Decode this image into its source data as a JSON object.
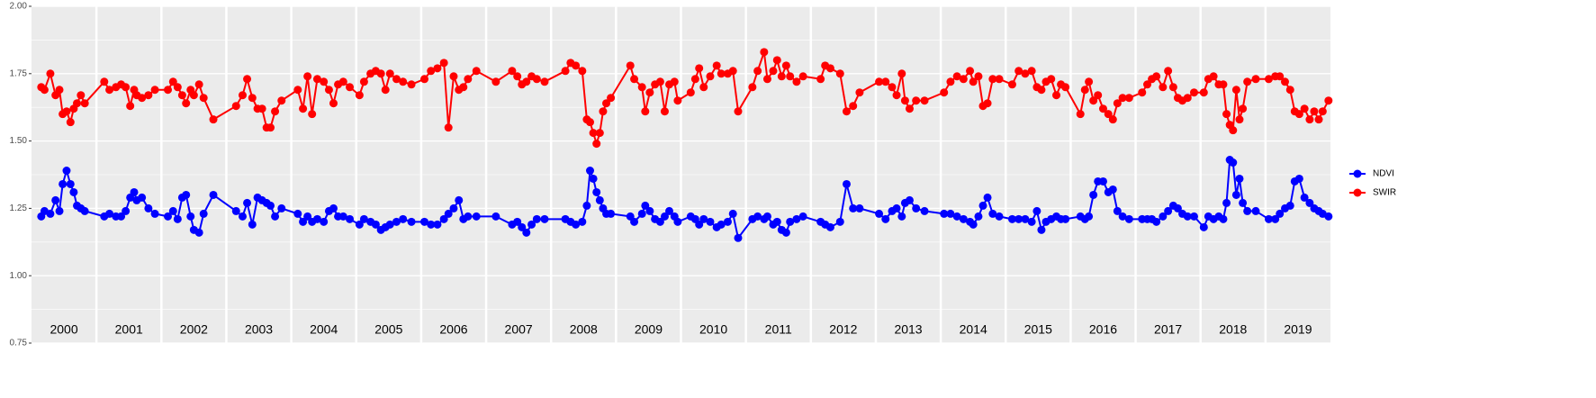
{
  "chart_data": {
    "type": "line",
    "years": [
      "2000",
      "2001",
      "2002",
      "2003",
      "2004",
      "2005",
      "2006",
      "2007",
      "2008",
      "2009",
      "2010",
      "2011",
      "2012",
      "2013",
      "2014",
      "2015",
      "2016",
      "2017",
      "2018",
      "2019"
    ],
    "x": [
      2000.15,
      2000.2,
      2000.29,
      2000.37,
      2000.43,
      2000.48,
      2000.54,
      2000.6,
      2000.65,
      2000.7,
      2000.76,
      2000.82,
      2001.12,
      2001.2,
      2001.3,
      2001.38,
      2001.45,
      2001.52,
      2001.58,
      2001.62,
      2001.7,
      2001.8,
      2001.9,
      2002.1,
      2002.18,
      2002.25,
      2002.32,
      2002.38,
      2002.45,
      2002.5,
      2002.58,
      2002.65,
      2002.8,
      2003.15,
      2003.25,
      2003.32,
      2003.4,
      2003.48,
      2003.55,
      2003.62,
      2003.68,
      2003.75,
      2003.85,
      2004.1,
      2004.18,
      2004.25,
      2004.32,
      2004.4,
      2004.5,
      2004.58,
      2004.65,
      2004.72,
      2004.8,
      2004.9,
      2005.05,
      2005.12,
      2005.22,
      2005.3,
      2005.38,
      2005.45,
      2005.52,
      2005.62,
      2005.72,
      2005.85,
      2006.05,
      2006.15,
      2006.25,
      2006.35,
      2006.42,
      2006.5,
      2006.58,
      2006.65,
      2006.72,
      2006.85,
      2007.15,
      2007.4,
      2007.48,
      2007.55,
      2007.62,
      2007.7,
      2007.78,
      2007.9,
      2008.22,
      2008.3,
      2008.38,
      2008.48,
      2008.55,
      2008.6,
      2008.65,
      2008.7,
      2008.75,
      2008.8,
      2008.85,
      2008.92,
      2009.22,
      2009.28,
      2009.4,
      2009.45,
      2009.52,
      2009.6,
      2009.68,
      2009.75,
      2009.82,
      2009.9,
      2009.95,
      2010.15,
      2010.22,
      2010.28,
      2010.35,
      2010.45,
      2010.55,
      2010.62,
      2010.72,
      2010.8,
      2010.88,
      2011.1,
      2011.18,
      2011.28,
      2011.33,
      2011.42,
      2011.48,
      2011.55,
      2011.62,
      2011.68,
      2011.78,
      2011.88,
      2012.15,
      2012.22,
      2012.3,
      2012.45,
      2012.55,
      2012.65,
      2012.75,
      2013.05,
      2013.15,
      2013.25,
      2013.32,
      2013.4,
      2013.45,
      2013.52,
      2013.62,
      2013.75,
      2014.05,
      2014.15,
      2014.25,
      2014.35,
      2014.45,
      2014.5,
      2014.58,
      2014.65,
      2014.72,
      2014.8,
      2014.9,
      2015.1,
      2015.2,
      2015.3,
      2015.4,
      2015.48,
      2015.55,
      2015.62,
      2015.7,
      2015.78,
      2015.85,
      2015.92,
      2016.15,
      2016.22,
      2016.28,
      2016.35,
      2016.42,
      2016.5,
      2016.58,
      2016.65,
      2016.72,
      2016.8,
      2016.9,
      2017.1,
      2017.18,
      2017.25,
      2017.32,
      2017.42,
      2017.5,
      2017.58,
      2017.65,
      2017.72,
      2017.8,
      2017.9,
      2018.05,
      2018.12,
      2018.2,
      2018.28,
      2018.35,
      2018.4,
      2018.45,
      2018.5,
      2018.55,
      2018.6,
      2018.65,
      2018.72,
      2018.85,
      2019.05,
      2019.15,
      2019.22,
      2019.3,
      2019.38,
      2019.45,
      2019.52,
      2019.6,
      2019.68,
      2019.75,
      2019.82,
      2019.88,
      2019.97
    ],
    "series": [
      {
        "name": "NDVI",
        "color": "#0000ff",
        "values": [
          1.22,
          1.24,
          1.23,
          1.28,
          1.24,
          1.34,
          1.39,
          1.34,
          1.31,
          1.26,
          1.25,
          1.24,
          1.22,
          1.23,
          1.22,
          1.22,
          1.24,
          1.29,
          1.31,
          1.28,
          1.29,
          1.25,
          1.23,
          1.22,
          1.24,
          1.21,
          1.29,
          1.3,
          1.22,
          1.17,
          1.16,
          1.23,
          1.3,
          1.24,
          1.22,
          1.27,
          1.19,
          1.29,
          1.28,
          1.27,
          1.26,
          1.22,
          1.25,
          1.23,
          1.2,
          1.22,
          1.2,
          1.21,
          1.2,
          1.24,
          1.25,
          1.22,
          1.22,
          1.21,
          1.19,
          1.21,
          1.2,
          1.19,
          1.17,
          1.18,
          1.19,
          1.2,
          1.21,
          1.2,
          1.2,
          1.19,
          1.19,
          1.21,
          1.23,
          1.25,
          1.28,
          1.21,
          1.22,
          1.22,
          1.22,
          1.19,
          1.2,
          1.18,
          1.16,
          1.19,
          1.21,
          1.21,
          1.21,
          1.2,
          1.19,
          1.2,
          1.26,
          1.39,
          1.36,
          1.31,
          1.28,
          1.25,
          1.23,
          1.23,
          1.22,
          1.2,
          1.23,
          1.26,
          1.24,
          1.21,
          1.2,
          1.22,
          1.24,
          1.22,
          1.2,
          1.22,
          1.21,
          1.19,
          1.21,
          1.2,
          1.18,
          1.19,
          1.2,
          1.23,
          1.14,
          1.21,
          1.22,
          1.21,
          1.22,
          1.19,
          1.2,
          1.17,
          1.16,
          1.2,
          1.21,
          1.22,
          1.2,
          1.19,
          1.18,
          1.2,
          1.34,
          1.25,
          1.25,
          1.23,
          1.21,
          1.24,
          1.25,
          1.22,
          1.27,
          1.28,
          1.25,
          1.24,
          1.23,
          1.23,
          1.22,
          1.21,
          1.2,
          1.19,
          1.22,
          1.26,
          1.29,
          1.23,
          1.22,
          1.21,
          1.21,
          1.21,
          1.2,
          1.24,
          1.17,
          1.2,
          1.21,
          1.22,
          1.21,
          1.21,
          1.22,
          1.21,
          1.22,
          1.3,
          1.35,
          1.35,
          1.31,
          1.32,
          1.24,
          1.22,
          1.21,
          1.21,
          1.21,
          1.21,
          1.2,
          1.22,
          1.24,
          1.26,
          1.25,
          1.23,
          1.22,
          1.22,
          1.18,
          1.22,
          1.21,
          1.22,
          1.21,
          1.27,
          1.43,
          1.42,
          1.3,
          1.36,
          1.27,
          1.24,
          1.24,
          1.21,
          1.21,
          1.23,
          1.25,
          1.26,
          1.35,
          1.36,
          1.29,
          1.27,
          1.25,
          1.24,
          1.23,
          1.22
        ]
      },
      {
        "name": "SWIR",
        "color": "#ff0000",
        "values": [
          1.7,
          1.69,
          1.75,
          1.67,
          1.69,
          1.6,
          1.61,
          1.57,
          1.62,
          1.64,
          1.67,
          1.64,
          1.72,
          1.69,
          1.7,
          1.71,
          1.7,
          1.63,
          1.69,
          1.67,
          1.66,
          1.67,
          1.69,
          1.69,
          1.72,
          1.7,
          1.67,
          1.64,
          1.69,
          1.67,
          1.71,
          1.66,
          1.58,
          1.63,
          1.67,
          1.73,
          1.66,
          1.62,
          1.62,
          1.55,
          1.55,
          1.61,
          1.65,
          1.69,
          1.62,
          1.74,
          1.6,
          1.73,
          1.72,
          1.69,
          1.64,
          1.71,
          1.72,
          1.7,
          1.67,
          1.72,
          1.75,
          1.76,
          1.75,
          1.69,
          1.75,
          1.73,
          1.72,
          1.71,
          1.73,
          1.76,
          1.77,
          1.79,
          1.55,
          1.74,
          1.69,
          1.7,
          1.73,
          1.76,
          1.72,
          1.76,
          1.74,
          1.71,
          1.72,
          1.74,
          1.73,
          1.72,
          1.76,
          1.79,
          1.78,
          1.76,
          1.58,
          1.57,
          1.53,
          1.49,
          1.53,
          1.61,
          1.64,
          1.66,
          1.78,
          1.73,
          1.7,
          1.61,
          1.68,
          1.71,
          1.72,
          1.61,
          1.71,
          1.72,
          1.65,
          1.68,
          1.73,
          1.77,
          1.7,
          1.74,
          1.78,
          1.75,
          1.75,
          1.76,
          1.61,
          1.7,
          1.76,
          1.83,
          1.73,
          1.76,
          1.8,
          1.74,
          1.78,
          1.74,
          1.72,
          1.74,
          1.73,
          1.78,
          1.77,
          1.75,
          1.61,
          1.63,
          1.68,
          1.72,
          1.72,
          1.7,
          1.67,
          1.75,
          1.65,
          1.62,
          1.65,
          1.65,
          1.68,
          1.72,
          1.74,
          1.73,
          1.76,
          1.72,
          1.74,
          1.63,
          1.64,
          1.73,
          1.73,
          1.71,
          1.76,
          1.75,
          1.76,
          1.7,
          1.69,
          1.72,
          1.73,
          1.67,
          1.71,
          1.7,
          1.6,
          1.69,
          1.72,
          1.65,
          1.67,
          1.62,
          1.6,
          1.58,
          1.64,
          1.66,
          1.66,
          1.68,
          1.71,
          1.73,
          1.74,
          1.7,
          1.76,
          1.7,
          1.66,
          1.65,
          1.66,
          1.68,
          1.68,
          1.73,
          1.74,
          1.71,
          1.71,
          1.6,
          1.56,
          1.54,
          1.69,
          1.58,
          1.62,
          1.72,
          1.73,
          1.73,
          1.74,
          1.74,
          1.72,
          1.69,
          1.61,
          1.6,
          1.62,
          1.58,
          1.61,
          1.58,
          1.61,
          1.65
        ]
      }
    ],
    "xlim": [
      2000,
      2020
    ],
    "ylim": [
      0.75,
      2.0
    ],
    "yticks": [
      0.75,
      {
        "value": 1.0,
        "label": "1.00"
      },
      1.25,
      {
        "value": 1.5,
        "label": "1.50"
      },
      1.75,
      {
        "value": 2.0,
        "label": "2.00"
      }
    ],
    "grid": true,
    "legend": "right"
  }
}
